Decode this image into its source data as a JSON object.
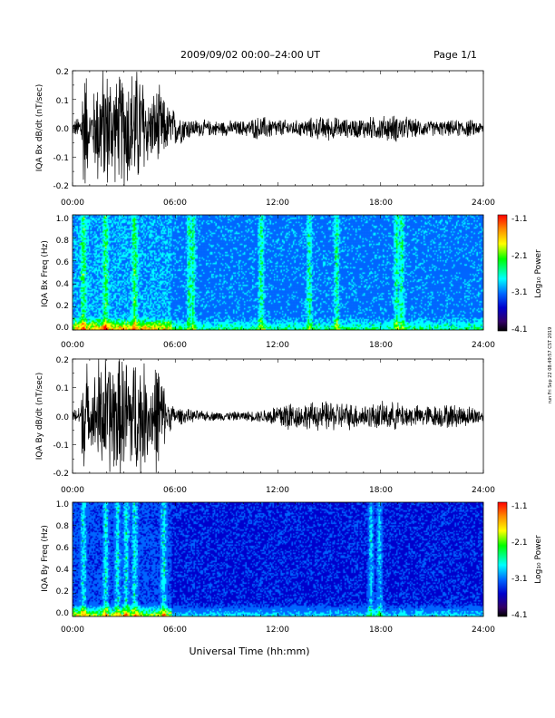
{
  "header": {
    "title": "2009/09/02  00:00–24:00 UT",
    "page": "Page 1/1"
  },
  "footer": {
    "xlabel": "Universal Time (hh:mm)",
    "side_note": "run Fri Sep 22 08:49:57 CST 2019"
  },
  "x_ticks": [
    "00:00",
    "06:00",
    "12:00",
    "18:00",
    "24:00"
  ],
  "colorbar": {
    "label": "Log₁₀ Power",
    "ticks": [
      "-1.1",
      "-2.1",
      "-3.1",
      "-4.1"
    ],
    "colors": [
      "#ff0000",
      "#ff8800",
      "#ffff00",
      "#00ff00",
      "#00ffff",
      "#0066ff",
      "#0000cc",
      "#330066",
      "#000000"
    ]
  },
  "chart_data": [
    {
      "type": "line",
      "ylabel": "IQA Bx dB/dt (nT/sec)",
      "ylim": [
        -0.2,
        0.2
      ],
      "yticks": [
        "0.2",
        "0.1",
        "0.0",
        "-0.1",
        "-0.2"
      ],
      "xlim_hours": [
        0,
        24
      ],
      "envelope": {
        "x_hours": [
          0,
          0.5,
          0.6,
          0.8,
          1.0,
          1.5,
          1.8,
          2.2,
          2.6,
          3.0,
          3.5,
          4.0,
          4.5,
          5.0,
          5.5,
          6.0,
          7.0,
          8.0,
          10.0,
          11.0,
          12.0,
          13.0,
          14.0,
          15.0,
          16.0,
          17.0,
          18.0,
          19.0,
          20.0,
          21.0,
          22.0,
          23.0,
          24.0
        ],
        "amplitude": [
          0.02,
          0.05,
          0.2,
          0.2,
          0.05,
          0.2,
          0.2,
          0.2,
          0.16,
          0.2,
          0.2,
          0.2,
          0.1,
          0.14,
          0.08,
          0.06,
          0.03,
          0.025,
          0.025,
          0.04,
          0.03,
          0.025,
          0.035,
          0.04,
          0.03,
          0.035,
          0.04,
          0.045,
          0.03,
          0.025,
          0.025,
          0.03,
          0.02
        ]
      }
    },
    {
      "type": "heatmap",
      "ylabel": "IQA Bx Freq (Hz)",
      "ylim": [
        0.0,
        1.0
      ],
      "yticks": [
        "1.0",
        "0.8",
        "0.6",
        "0.4",
        "0.2",
        "0.0"
      ],
      "xlim_hours": [
        0,
        24
      ],
      "zlim": [
        -4.1,
        -1.1
      ],
      "bursts_hours": [
        0.6,
        1.9,
        3.6,
        6.8,
        7.0,
        11.0,
        13.8,
        15.4,
        18.9,
        19.2
      ]
    },
    {
      "type": "line",
      "ylabel": "IQA By dB/dt (nT/sec)",
      "ylim": [
        -0.2,
        0.2
      ],
      "yticks": [
        "0.2",
        "0.1",
        "0.0",
        "-0.1",
        "-0.2"
      ],
      "xlim_hours": [
        0,
        24
      ],
      "envelope": {
        "x_hours": [
          0,
          0.5,
          0.6,
          0.8,
          1.0,
          1.5,
          1.8,
          2.2,
          2.6,
          3.0,
          3.5,
          4.0,
          4.5,
          5.0,
          5.5,
          6.0,
          7.0,
          8.0,
          10.0,
          11.0,
          12.0,
          12.5,
          13.0,
          14.0,
          15.0,
          16.0,
          17.0,
          18.0,
          19.0,
          20.0,
          21.0,
          22.0,
          23.0,
          24.0
        ],
        "amplitude": [
          0.02,
          0.04,
          0.2,
          0.2,
          0.06,
          0.2,
          0.2,
          0.2,
          0.2,
          0.2,
          0.2,
          0.2,
          0.12,
          0.2,
          0.06,
          0.03,
          0.02,
          0.015,
          0.015,
          0.02,
          0.04,
          0.06,
          0.04,
          0.045,
          0.05,
          0.045,
          0.04,
          0.045,
          0.045,
          0.035,
          0.035,
          0.04,
          0.035,
          0.025
        ]
      }
    },
    {
      "type": "heatmap",
      "ylabel": "IQA By Freq (Hz)",
      "ylim": [
        0.0,
        1.0
      ],
      "yticks": [
        "1.0",
        "0.8",
        "0.6",
        "0.4",
        "0.2",
        "0.0"
      ],
      "xlim_hours": [
        0,
        24
      ],
      "zlim": [
        -4.1,
        -1.1
      ],
      "bursts_hours": [
        0.6,
        1.9,
        2.6,
        3.1,
        3.6,
        5.3,
        17.4,
        17.9
      ]
    }
  ]
}
